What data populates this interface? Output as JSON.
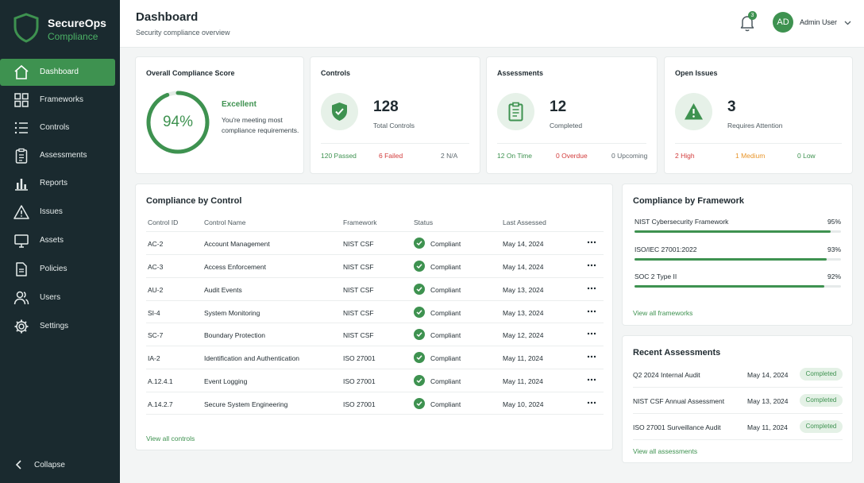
{
  "brand": {
    "name": "SecureOps",
    "product": "Compliance"
  },
  "sidebar": {
    "items": [
      {
        "label": "Dashboard",
        "icon": "home-icon",
        "active": true
      },
      {
        "label": "Frameworks",
        "icon": "grid-icon"
      },
      {
        "label": "Controls",
        "icon": "list-icon"
      },
      {
        "label": "Assessments",
        "icon": "clipboard-icon"
      },
      {
        "label": "Reports",
        "icon": "bar-chart-icon"
      },
      {
        "label": "Issues",
        "icon": "warning-icon"
      },
      {
        "label": "Assets",
        "icon": "monitor-icon"
      },
      {
        "label": "Policies",
        "icon": "document-icon"
      },
      {
        "label": "Users",
        "icon": "users-icon"
      },
      {
        "label": "Settings",
        "icon": "gear-icon"
      }
    ],
    "collapse_label": "Collapse"
  },
  "header": {
    "title": "Dashboard",
    "subtitle": "Security compliance overview",
    "notification_count": "3",
    "avatar_initials": "AD",
    "user_name": "Admin User"
  },
  "score_card": {
    "title": "Overall Compliance Score",
    "value": "94%",
    "percent": 94,
    "label": "Excellent",
    "description": "You're meeting most compliance requirements."
  },
  "controls_card": {
    "title": "Controls",
    "count": "128",
    "label": "Total Controls",
    "passed": "120 Passed",
    "failed": "6 Failed",
    "na": "2 N/A"
  },
  "assessments_card": {
    "title": "Assessments",
    "count": "12",
    "label": "Completed",
    "on_time": "12 On Time",
    "overdue": "0 Overdue",
    "upcoming": "0 Upcoming"
  },
  "issues_card": {
    "title": "Open Issues",
    "count": "3",
    "label": "Requires Attention",
    "high": "2 High",
    "medium": "1 Medium",
    "low": "0 Low"
  },
  "controls_table": {
    "title": "Compliance by Control",
    "columns": [
      "Control ID",
      "Control Name",
      "Framework",
      "Status",
      "Last Assessed"
    ],
    "rows": [
      {
        "id": "AC-2",
        "name": "Account Management",
        "framework": "NIST CSF",
        "status": "Compliant",
        "date": "May 14, 2024"
      },
      {
        "id": "AC-3",
        "name": "Access Enforcement",
        "framework": "NIST CSF",
        "status": "Compliant",
        "date": "May 14, 2024"
      },
      {
        "id": "AU-2",
        "name": "Audit Events",
        "framework": "NIST CSF",
        "status": "Compliant",
        "date": "May 13, 2024"
      },
      {
        "id": "SI-4",
        "name": "System Monitoring",
        "framework": "NIST CSF",
        "status": "Compliant",
        "date": "May 13, 2024"
      },
      {
        "id": "SC-7",
        "name": "Boundary Protection",
        "framework": "NIST CSF",
        "status": "Compliant",
        "date": "May 12, 2024"
      },
      {
        "id": "IA-2",
        "name": "Identification and Authentication",
        "framework": "ISO 27001",
        "status": "Compliant",
        "date": "May 11, 2024"
      },
      {
        "id": "A.12.4.1",
        "name": "Event Logging",
        "framework": "ISO 27001",
        "status": "Compliant",
        "date": "May 11, 2024"
      },
      {
        "id": "A.14.2.7",
        "name": "Secure System Engineering",
        "framework": "ISO 27001",
        "status": "Compliant",
        "date": "May 10, 2024"
      }
    ],
    "view_all": "View all controls"
  },
  "frameworks": {
    "title": "Compliance by Framework",
    "items": [
      {
        "name": "NIST Cybersecurity Framework",
        "pct_label": "95%",
        "pct": 95
      },
      {
        "name": "ISO/IEC 27001:2022",
        "pct_label": "93%",
        "pct": 93
      },
      {
        "name": "SOC 2 Type II",
        "pct_label": "92%",
        "pct": 92
      }
    ],
    "view_all": "View all frameworks"
  },
  "recent_assessments": {
    "title": "Recent Assessments",
    "items": [
      {
        "name": "Q2 2024 Internal Audit",
        "date": "May 14, 2024",
        "status": "Completed"
      },
      {
        "name": "NIST CSF Annual Assessment",
        "date": "May 13, 2024",
        "status": "Completed"
      },
      {
        "name": "ISO 27001 Surveillance Audit",
        "date": "May 11, 2024",
        "status": "Completed"
      }
    ],
    "view_all": "View all assessments"
  },
  "colors": {
    "accent": "#3e9250",
    "sidebar_bg": "#1a2a2f",
    "danger": "#d23b3b",
    "warning": "#e8952a",
    "muted": "#5f6a70"
  }
}
